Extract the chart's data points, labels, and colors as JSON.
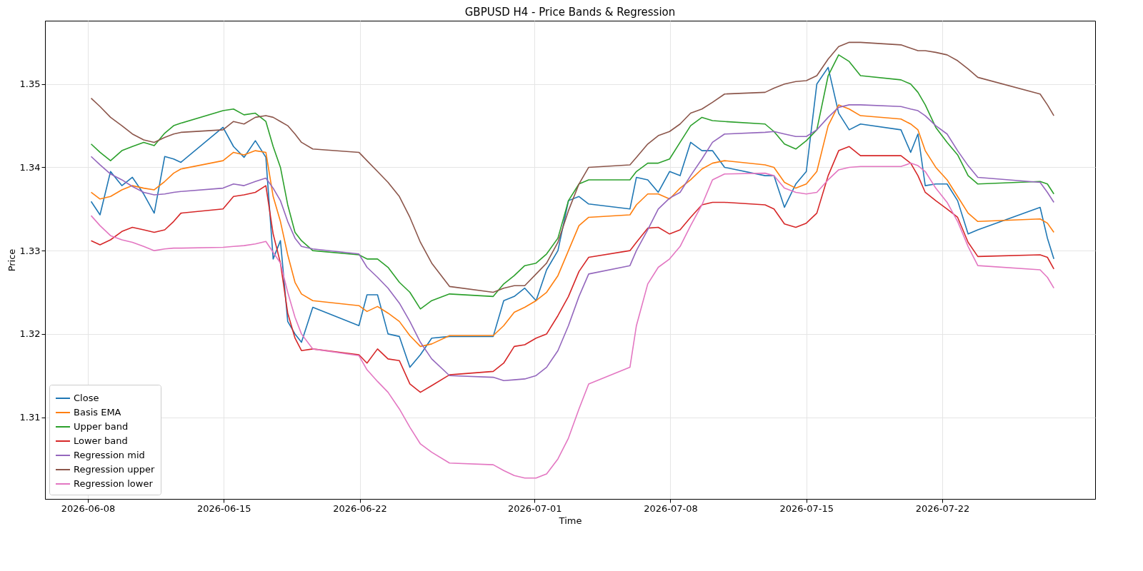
{
  "chart_data": {
    "type": "line",
    "title": "GBPUSD H4 - Price Bands & Regression",
    "xlabel": "Time",
    "ylabel": "Price",
    "x": [
      "2026-06-08T04:00",
      "2026-06-08T15:00",
      "2026-06-09T04:00",
      "2026-06-09T18:00",
      "2026-06-10T07:00",
      "2026-06-10T21:00",
      "2026-06-11T10:00",
      "2026-06-11T23:00",
      "2026-06-12T10:00",
      "2026-06-12T19:00",
      "2026-06-14T23:00",
      "2026-06-15T12:00",
      "2026-06-16T01:00",
      "2026-06-16T15:00",
      "2026-06-17T04:00",
      "2026-06-17T13:00",
      "2026-06-17T22:00",
      "2026-06-18T07:00",
      "2026-06-18T16:00",
      "2026-06-19T00:00",
      "2026-06-19T14:00",
      "2026-06-21T23:00",
      "2026-06-22T09:00",
      "2026-06-22T22:00",
      "2026-06-23T11:00",
      "2026-06-24T01:00",
      "2026-06-24T14:00",
      "2026-06-25T03:00",
      "2026-06-25T17:00",
      "2026-06-26T15:00",
      "2026-06-28T21:00",
      "2026-06-29T10:00",
      "2026-06-29T23:00",
      "2026-06-30T12:00",
      "2026-07-01T02:00",
      "2026-07-01T15:00",
      "2026-07-02T05:00",
      "2026-07-02T18:00",
      "2026-07-03T07:00",
      "2026-07-03T19:00",
      "2026-07-05T22:00",
      "2026-07-06T06:00",
      "2026-07-06T20:00",
      "2026-07-07T09:00",
      "2026-07-07T23:00",
      "2026-07-08T12:00",
      "2026-07-09T01:00",
      "2026-07-09T15:00",
      "2026-07-10T04:00",
      "2026-07-10T19:00",
      "2026-07-12T21:00",
      "2026-07-13T08:00",
      "2026-07-13T21:00",
      "2026-07-14T11:00",
      "2026-07-15T00:00",
      "2026-07-15T13:00",
      "2026-07-16T03:00",
      "2026-07-16T16:00",
      "2026-07-17T05:00",
      "2026-07-17T19:00",
      "2026-07-19T21:00",
      "2026-07-20T09:00",
      "2026-07-20T18:00",
      "2026-07-21T03:00",
      "2026-07-21T16:00",
      "2026-07-22T06:00",
      "2026-07-22T19:00",
      "2026-07-23T08:00",
      "2026-07-23T20:00",
      "2026-07-27T01:00",
      "2026-07-27T10:00",
      "2026-07-27T18:00"
    ],
    "series": [
      {
        "name": "Close",
        "color": "#1f77b4",
        "values": [
          1.3359,
          1.3343,
          1.3395,
          1.3378,
          1.3388,
          1.3368,
          1.3345,
          1.3413,
          1.341,
          1.3406,
          1.3448,
          1.3425,
          1.3412,
          1.3432,
          1.3412,
          1.329,
          1.3312,
          1.3215,
          1.32,
          1.319,
          1.3232,
          1.321,
          1.3247,
          1.3247,
          1.32,
          1.3197,
          1.316,
          1.3175,
          1.3195,
          1.3197,
          1.3197,
          1.324,
          1.3245,
          1.3255,
          1.324,
          1.3277,
          1.33,
          1.336,
          1.3365,
          1.3356,
          1.335,
          1.3388,
          1.3385,
          1.337,
          1.3395,
          1.339,
          1.343,
          1.342,
          1.342,
          1.34,
          1.339,
          1.339,
          1.3352,
          1.338,
          1.3395,
          1.35,
          1.352,
          1.3465,
          1.3445,
          1.3452,
          1.3445,
          1.3418,
          1.344,
          1.3378,
          1.338,
          1.338,
          1.336,
          1.332,
          1.3325,
          1.3352,
          1.3315,
          1.329
        ]
      },
      {
        "name": "Basis EMA",
        "color": "#ff7f0e",
        "values": [
          1.337,
          1.3362,
          1.3365,
          1.3373,
          1.3378,
          1.3375,
          1.3373,
          1.3383,
          1.3393,
          1.3398,
          1.3408,
          1.3418,
          1.3415,
          1.342,
          1.3418,
          1.3365,
          1.3335,
          1.3295,
          1.3262,
          1.3248,
          1.324,
          1.3234,
          1.3227,
          1.3233,
          1.3225,
          1.3215,
          1.3198,
          1.3185,
          1.3188,
          1.3198,
          1.3198,
          1.321,
          1.3226,
          1.3232,
          1.324,
          1.325,
          1.327,
          1.33,
          1.333,
          1.334,
          1.3343,
          1.3355,
          1.3368,
          1.3368,
          1.3362,
          1.3375,
          1.3385,
          1.3398,
          1.3405,
          1.3408,
          1.3403,
          1.34,
          1.3382,
          1.3375,
          1.338,
          1.3395,
          1.345,
          1.3475,
          1.347,
          1.3462,
          1.3458,
          1.3452,
          1.3445,
          1.342,
          1.34,
          1.3385,
          1.3365,
          1.3345,
          1.3335,
          1.3338,
          1.3333,
          1.3322
        ]
      },
      {
        "name": "Upper band",
        "color": "#2ca02c",
        "values": [
          1.3428,
          1.3418,
          1.3408,
          1.342,
          1.3425,
          1.343,
          1.3426,
          1.3441,
          1.345,
          1.3453,
          1.3468,
          1.347,
          1.3463,
          1.3465,
          1.3455,
          1.3425,
          1.34,
          1.3355,
          1.3322,
          1.3312,
          1.33,
          1.3295,
          1.329,
          1.329,
          1.328,
          1.3262,
          1.325,
          1.323,
          1.324,
          1.3248,
          1.3245,
          1.326,
          1.327,
          1.3282,
          1.3285,
          1.3296,
          1.3315,
          1.336,
          1.338,
          1.3385,
          1.3385,
          1.3395,
          1.3405,
          1.3405,
          1.341,
          1.343,
          1.345,
          1.346,
          1.3456,
          1.3455,
          1.3452,
          1.3443,
          1.3428,
          1.3422,
          1.3432,
          1.3445,
          1.351,
          1.3535,
          1.3527,
          1.351,
          1.3505,
          1.35,
          1.349,
          1.3475,
          1.3448,
          1.343,
          1.3415,
          1.339,
          1.338,
          1.3383,
          1.338,
          1.3368
        ]
      },
      {
        "name": "Lower band",
        "color": "#d62728",
        "values": [
          1.3312,
          1.3307,
          1.3313,
          1.3323,
          1.3328,
          1.3325,
          1.3322,
          1.3325,
          1.3335,
          1.3345,
          1.335,
          1.3365,
          1.3367,
          1.337,
          1.3378,
          1.332,
          1.3285,
          1.3225,
          1.3195,
          1.318,
          1.3182,
          1.3175,
          1.3165,
          1.3182,
          1.317,
          1.3168,
          1.314,
          1.313,
          1.3138,
          1.3151,
          1.3155,
          1.3165,
          1.3185,
          1.3187,
          1.3195,
          1.32,
          1.3222,
          1.3245,
          1.3275,
          1.3292,
          1.33,
          1.331,
          1.3327,
          1.3328,
          1.332,
          1.3325,
          1.334,
          1.3355,
          1.3358,
          1.3358,
          1.3355,
          1.335,
          1.3332,
          1.3328,
          1.3333,
          1.3345,
          1.339,
          1.342,
          1.3425,
          1.3414,
          1.3414,
          1.3405,
          1.339,
          1.337,
          1.336,
          1.335,
          1.334,
          1.331,
          1.3293,
          1.3295,
          1.3292,
          1.3278
        ]
      },
      {
        "name": "Regression mid",
        "color": "#9467bd",
        "values": [
          1.3413,
          1.3403,
          1.3392,
          1.3385,
          1.3377,
          1.337,
          1.3367,
          1.3368,
          1.337,
          1.3371,
          1.3375,
          1.338,
          1.3378,
          1.3383,
          1.3387,
          1.3375,
          1.336,
          1.3335,
          1.3315,
          1.3305,
          1.3302,
          1.3296,
          1.328,
          1.3268,
          1.3255,
          1.3237,
          1.3215,
          1.319,
          1.317,
          1.315,
          1.3148,
          1.3144,
          1.3145,
          1.3146,
          1.315,
          1.316,
          1.318,
          1.321,
          1.3245,
          1.3272,
          1.3282,
          1.33,
          1.3325,
          1.335,
          1.3363,
          1.337,
          1.339,
          1.341,
          1.343,
          1.344,
          1.3442,
          1.3443,
          1.344,
          1.3437,
          1.3437,
          1.3445,
          1.346,
          1.3472,
          1.3475,
          1.3475,
          1.3473,
          1.347,
          1.3468,
          1.3462,
          1.345,
          1.344,
          1.342,
          1.3402,
          1.3388,
          1.3382,
          1.337,
          1.3358
        ]
      },
      {
        "name": "Regression upper",
        "color": "#8c564b",
        "values": [
          1.3483,
          1.3473,
          1.346,
          1.345,
          1.344,
          1.3433,
          1.343,
          1.3436,
          1.344,
          1.3442,
          1.3445,
          1.3455,
          1.3452,
          1.346,
          1.3462,
          1.346,
          1.3455,
          1.345,
          1.344,
          1.343,
          1.3422,
          1.3418,
          1.3408,
          1.3395,
          1.3382,
          1.3365,
          1.334,
          1.331,
          1.3285,
          1.3257,
          1.325,
          1.3255,
          1.3258,
          1.3258,
          1.3272,
          1.3285,
          1.331,
          1.3348,
          1.338,
          1.34,
          1.3403,
          1.3412,
          1.3428,
          1.3438,
          1.3443,
          1.3452,
          1.3465,
          1.347,
          1.3478,
          1.3488,
          1.349,
          1.3495,
          1.35,
          1.3503,
          1.3504,
          1.351,
          1.353,
          1.3545,
          1.355,
          1.355,
          1.3547,
          1.3543,
          1.354,
          1.354,
          1.3538,
          1.3535,
          1.3528,
          1.3518,
          1.3508,
          1.3488,
          1.3475,
          1.3462
        ]
      },
      {
        "name": "Regression lower",
        "color": "#e377c2",
        "values": [
          1.3342,
          1.333,
          1.3318,
          1.3313,
          1.331,
          1.3305,
          1.33,
          1.3302,
          1.3303,
          1.3303,
          1.3304,
          1.3305,
          1.3306,
          1.3308,
          1.3311,
          1.3298,
          1.3285,
          1.325,
          1.322,
          1.32,
          1.3182,
          1.3174,
          1.3157,
          1.3143,
          1.313,
          1.311,
          1.3088,
          1.3068,
          1.3058,
          1.3045,
          1.3043,
          1.3036,
          1.303,
          1.3027,
          1.3027,
          1.3032,
          1.305,
          1.3075,
          1.311,
          1.314,
          1.316,
          1.321,
          1.326,
          1.328,
          1.329,
          1.3305,
          1.333,
          1.3355,
          1.3385,
          1.3392,
          1.3393,
          1.339,
          1.3375,
          1.337,
          1.3368,
          1.337,
          1.3385,
          1.3397,
          1.34,
          1.3401,
          1.3401,
          1.3405,
          1.3402,
          1.3395,
          1.3375,
          1.3358,
          1.3335,
          1.3305,
          1.3282,
          1.3277,
          1.3268,
          1.3255
        ]
      }
    ],
    "xlim": [
      "2026-06-05T19:00",
      "2026-07-29T21:00"
    ],
    "xticks": [
      "2026-06-08",
      "2026-06-15",
      "2026-06-22",
      "2026-07-01",
      "2026-07-08",
      "2026-07-15",
      "2026-07-22"
    ],
    "ylim": [
      1.3002,
      1.3576
    ],
    "yticks": [
      1.31,
      1.32,
      1.33,
      1.34,
      1.35
    ],
    "grid": true,
    "legend": "bottom left",
    "marker": "none",
    "line_style": "solid"
  }
}
